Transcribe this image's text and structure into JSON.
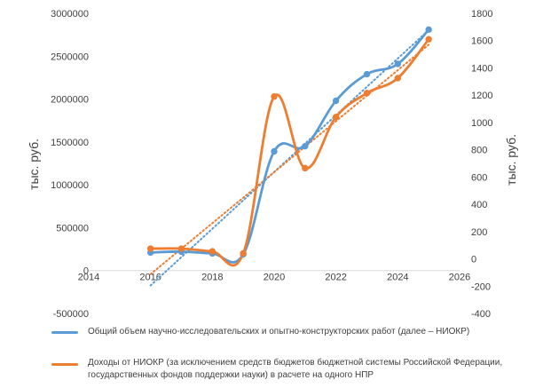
{
  "chart_data": {
    "type": "line",
    "ylabel": "тыс. руб.",
    "y2label": "тыс. руб.",
    "x_ticks": [
      "2014",
      "2016",
      "2018",
      "2020",
      "2022",
      "2024",
      "2026"
    ],
    "xlim": [
      2014,
      2026
    ],
    "ylim": [
      -500000,
      3000000
    ],
    "y_ticks": [
      "3000000",
      "2500000",
      "2000000",
      "1500000",
      "1000000",
      "500000",
      "0",
      "-500000"
    ],
    "y2lim": [
      -400,
      1800
    ],
    "y2_ticks": [
      "1800",
      "1600",
      "1400",
      "1200",
      "1000",
      "800",
      "600",
      "400",
      "200",
      "0",
      "-200",
      "-400"
    ],
    "series": [
      {
        "name": "Общий объем научно-исследовательских и опытно-конструкторских работ (далее – НИОКР)",
        "axis": "left",
        "color": "#5b9bd5",
        "x": [
          2016,
          2017,
          2018,
          2019,
          2020,
          2021,
          2022,
          2023,
          2024,
          2025
        ],
        "values": [
          210000,
          220000,
          200000,
          190000,
          1390000,
          1450000,
          1980000,
          2290000,
          2410000,
          2810000
        ],
        "trendline": true
      },
      {
        "name": "Доходы от НИОКР (за исключением средств бюджетов бюджетной системы Российской Федерации, государственных фондов поддержки науки) в расчете на одного НПР",
        "axis": "right",
        "color": "#ed7d31",
        "x": [
          2016,
          2017,
          2018,
          2019,
          2020,
          2021,
          2022,
          2023,
          2024,
          2025
        ],
        "values": [
          75,
          75,
          55,
          40,
          1190,
          665,
          1040,
          1215,
          1325,
          1610
        ],
        "trendline": true
      }
    ],
    "legend_position": "bottom"
  }
}
